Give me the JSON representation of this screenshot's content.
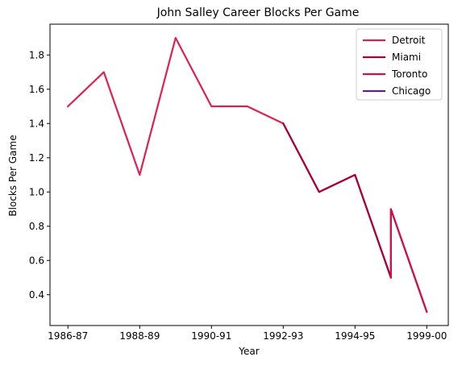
{
  "chart_data": {
    "type": "line",
    "title": "John Salley Career Blocks Per Game",
    "xlabel": "Year",
    "ylabel": "Blocks Per Game",
    "x_tick_labels": [
      "1986-87",
      "1988-89",
      "1990-91",
      "1992-93",
      "1994-95",
      "1999-00"
    ],
    "x_tick_positions": [
      0,
      2,
      4,
      6,
      8,
      10
    ],
    "xlim": [
      -0.5,
      10.6
    ],
    "ylim": [
      0.22,
      1.98
    ],
    "y_ticks": [
      0.4,
      0.6,
      0.8,
      1.0,
      1.2,
      1.4,
      1.6,
      1.8
    ],
    "y_tick_labels": [
      "0.4",
      "0.6",
      "0.8",
      "1.0",
      "1.2",
      "1.4",
      "1.6",
      "1.8"
    ],
    "grid": false,
    "legend_position": "top-right",
    "series": [
      {
        "name": "Detroit",
        "color": "#e0204f",
        "x": [
          0,
          1,
          2,
          3,
          4,
          5,
          6,
          7,
          8,
          9,
          9,
          10
        ],
        "y": [
          1.5,
          1.7,
          1.1,
          1.9,
          1.5,
          1.5,
          1.4,
          1.0,
          1.1,
          0.5,
          0.9,
          0.3
        ]
      },
      {
        "name": "Miami",
        "color": "#a5003a",
        "x": [
          6,
          7,
          8,
          9
        ],
        "y": [
          1.4,
          1.0,
          1.1,
          0.5
        ]
      },
      {
        "name": "Toronto",
        "color": "#cc1048",
        "x": [
          9,
          9,
          10
        ],
        "y": [
          0.5,
          0.9,
          0.3
        ]
      },
      {
        "name": "Chicago",
        "color": "#5b2680",
        "x": [],
        "y": []
      }
    ]
  }
}
